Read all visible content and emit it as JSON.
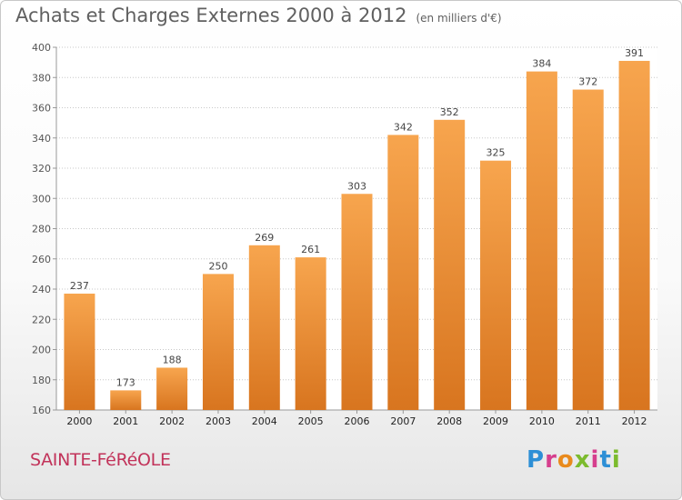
{
  "header": {
    "title": "Achats et Charges Externes 2000 à 2012",
    "unit": "(en milliers d'€)"
  },
  "footer": {
    "commune": "SAINTE-FéRéOLE",
    "logo": "Proxiti"
  },
  "colors": {
    "bar_light": "#f7a54e",
    "bar_dark": "#d8751f",
    "grid": "#c8c8c8"
  },
  "chart_data": {
    "type": "bar",
    "title": "Achats et Charges Externes 2000 à 2012",
    "subtitle": "(en milliers d'€)",
    "categories": [
      "2000",
      "2001",
      "2002",
      "2003",
      "2004",
      "2005",
      "2006",
      "2007",
      "2008",
      "2009",
      "2010",
      "2011",
      "2012"
    ],
    "values": [
      237,
      173,
      188,
      250,
      269,
      261,
      303,
      342,
      352,
      325,
      384,
      372,
      391
    ],
    "ylim": [
      160,
      400
    ],
    "yticks": [
      160,
      180,
      200,
      220,
      240,
      260,
      280,
      300,
      320,
      340,
      360,
      380,
      400
    ],
    "grid": true,
    "data_labels": true
  }
}
